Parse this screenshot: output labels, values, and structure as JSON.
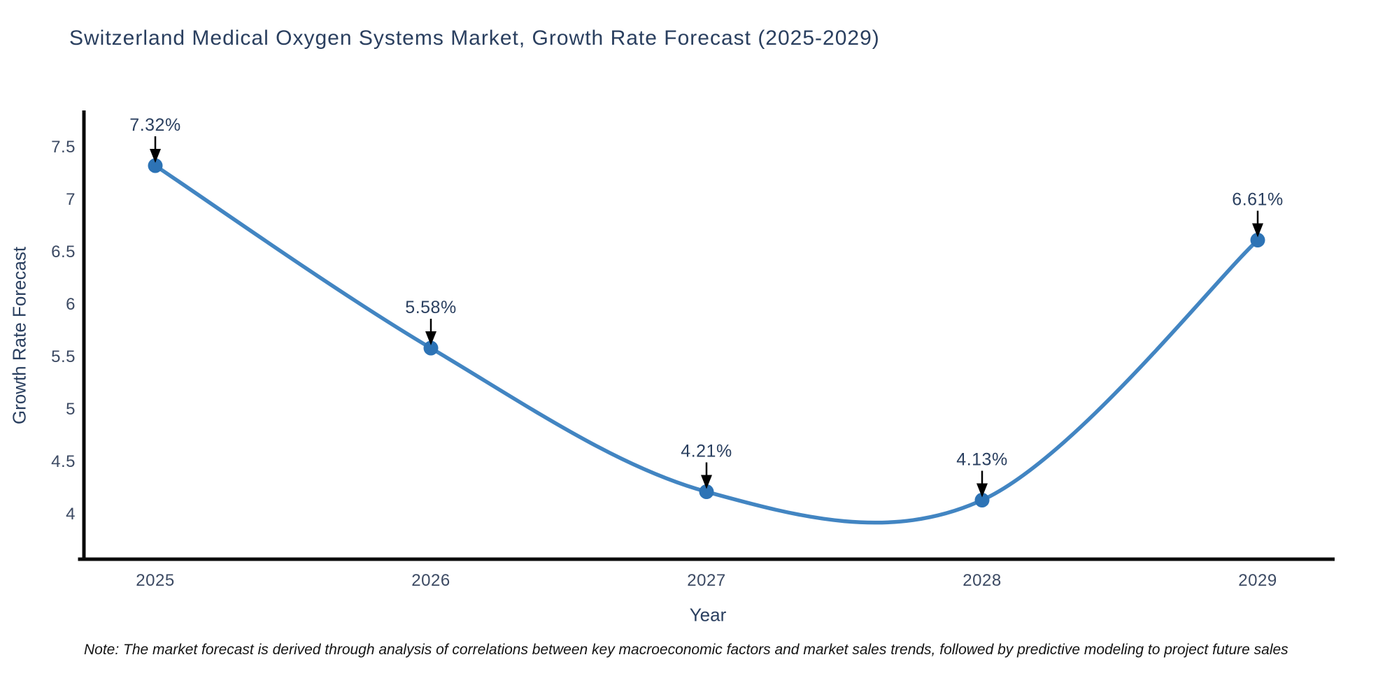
{
  "title": "Switzerland Medical Oxygen Systems Market, Growth Rate Forecast (2025-2029)",
  "note": "Note: The market forecast is derived through analysis of correlations between key macroeconomic factors and market sales trends, followed by predictive modeling to project future sales",
  "chart_data": {
    "type": "line",
    "line_shape": "spline",
    "x": [
      2025,
      2026,
      2027,
      2028,
      2029
    ],
    "values": [
      7.32,
      5.58,
      4.21,
      4.13,
      6.61
    ],
    "point_labels": [
      "7.32%",
      "5.58%",
      "4.21%",
      "4.13%",
      "6.61%"
    ],
    "xlabel": "Year",
    "ylabel": "Growth Rate Forecast",
    "y_ticks": [
      4,
      4.5,
      5,
      5.5,
      6,
      6.5,
      7,
      7.5
    ],
    "x_ticks": [
      "2025",
      "2026",
      "2027",
      "2028",
      "2029"
    ],
    "ylim": [
      3.57,
      7.85
    ],
    "grid": false,
    "legend": "none",
    "colors": {
      "line": "#4285c2",
      "marker": "#2d73b5",
      "annotation_text": "#2a3f5f",
      "annotation_arrow": "#000000",
      "axis_line": "#0b0b0b",
      "tick_label": "#3c4a63",
      "title": "#2a3f5f"
    }
  }
}
